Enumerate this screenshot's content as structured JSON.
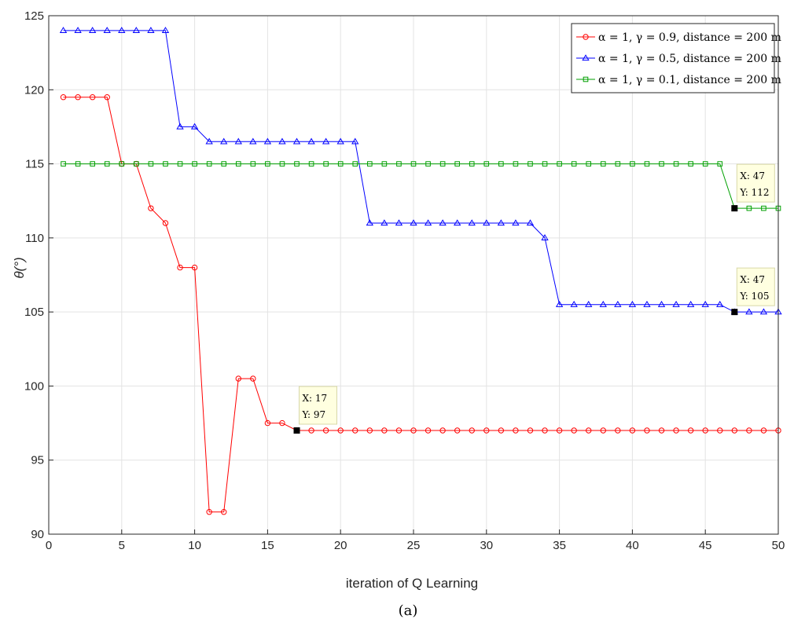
{
  "chart_data": {
    "type": "line",
    "xlabel": "iteration of Q Learning",
    "ylabel": "θ(°)",
    "xlim": [
      0,
      50
    ],
    "ylim": [
      90,
      125
    ],
    "xticks": [
      0,
      5,
      10,
      15,
      20,
      25,
      30,
      35,
      40,
      45,
      50
    ],
    "yticks": [
      90,
      95,
      100,
      105,
      110,
      115,
      120,
      125
    ],
    "grid": true,
    "legend_position": "top-right",
    "caption": "(a)",
    "series": [
      {
        "name": "α = 1, γ = 0.9, distance = 200 m",
        "color": "#ff0000",
        "marker": "circle",
        "x": [
          1,
          2,
          3,
          4,
          5,
          6,
          7,
          8,
          9,
          10,
          11,
          12,
          13,
          14,
          15,
          16,
          17,
          18,
          19,
          20,
          21,
          22,
          23,
          24,
          25,
          26,
          27,
          28,
          29,
          30,
          31,
          32,
          33,
          34,
          35,
          36,
          37,
          38,
          39,
          40,
          41,
          42,
          43,
          44,
          45,
          46,
          47,
          48,
          49,
          50
        ],
        "y": [
          119.5,
          119.5,
          119.5,
          119.5,
          115,
          115,
          112,
          111,
          108,
          108,
          91.5,
          91.5,
          100.5,
          100.5,
          97.5,
          97.5,
          97,
          97,
          97,
          97,
          97,
          97,
          97,
          97,
          97,
          97,
          97,
          97,
          97,
          97,
          97,
          97,
          97,
          97,
          97,
          97,
          97,
          97,
          97,
          97,
          97,
          97,
          97,
          97,
          97,
          97,
          97,
          97,
          97,
          97
        ]
      },
      {
        "name": "α = 1, γ = 0.5, distance = 200 m",
        "color": "#0000ff",
        "marker": "triangle",
        "x": [
          1,
          2,
          3,
          4,
          5,
          6,
          7,
          8,
          9,
          10,
          11,
          12,
          13,
          14,
          15,
          16,
          17,
          18,
          19,
          20,
          21,
          22,
          23,
          24,
          25,
          26,
          27,
          28,
          29,
          30,
          31,
          32,
          33,
          34,
          35,
          36,
          37,
          38,
          39,
          40,
          41,
          42,
          43,
          44,
          45,
          46,
          47,
          48,
          49,
          50
        ],
        "y": [
          124,
          124,
          124,
          124,
          124,
          124,
          124,
          124,
          117.5,
          117.5,
          116.5,
          116.5,
          116.5,
          116.5,
          116.5,
          116.5,
          116.5,
          116.5,
          116.5,
          116.5,
          116.5,
          111,
          111,
          111,
          111,
          111,
          111,
          111,
          111,
          111,
          111,
          111,
          111,
          110,
          105.5,
          105.5,
          105.5,
          105.5,
          105.5,
          105.5,
          105.5,
          105.5,
          105.5,
          105.5,
          105.5,
          105.5,
          105,
          105,
          105,
          105
        ]
      },
      {
        "name": "α = 1, γ = 0.1, distance = 200 m",
        "color": "#00a000",
        "marker": "square",
        "x": [
          1,
          2,
          3,
          4,
          5,
          6,
          7,
          8,
          9,
          10,
          11,
          12,
          13,
          14,
          15,
          16,
          17,
          18,
          19,
          20,
          21,
          22,
          23,
          24,
          25,
          26,
          27,
          28,
          29,
          30,
          31,
          32,
          33,
          34,
          35,
          36,
          37,
          38,
          39,
          40,
          41,
          42,
          43,
          44,
          45,
          46,
          47,
          48,
          49,
          50
        ],
        "y": [
          115,
          115,
          115,
          115,
          115,
          115,
          115,
          115,
          115,
          115,
          115,
          115,
          115,
          115,
          115,
          115,
          115,
          115,
          115,
          115,
          115,
          115,
          115,
          115,
          115,
          115,
          115,
          115,
          115,
          115,
          115,
          115,
          115,
          115,
          115,
          115,
          115,
          115,
          115,
          115,
          115,
          115,
          115,
          115,
          115,
          115,
          112,
          112,
          112,
          112
        ]
      }
    ],
    "annotations": [
      {
        "x": 47,
        "y": 112,
        "xtext": "X: 47",
        "ytext": "Y: 112"
      },
      {
        "x": 47,
        "y": 105,
        "xtext": "X: 47",
        "ytext": "Y: 105"
      },
      {
        "x": 17,
        "y": 97,
        "xtext": "X: 17",
        "ytext": "Y: 97"
      }
    ]
  }
}
